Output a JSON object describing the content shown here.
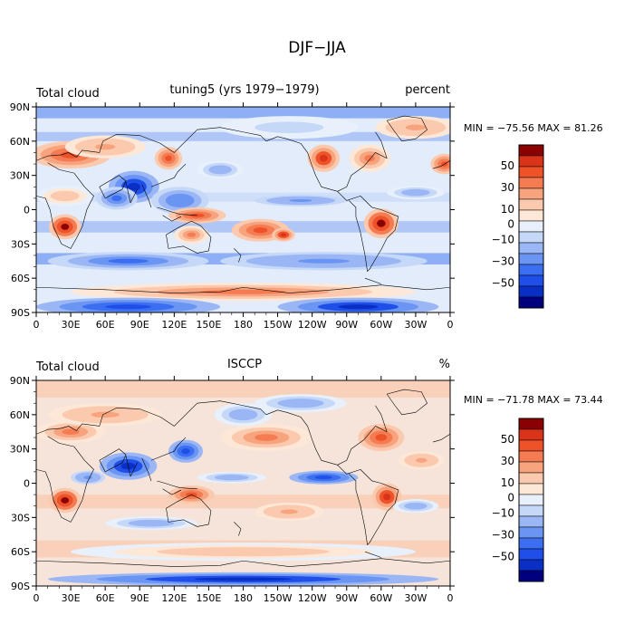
{
  "figure_title": "DJF−JJA",
  "colors": {
    "levels": [
      -60,
      -50,
      -40,
      -30,
      -20,
      -10,
      -5,
      5,
      10,
      20,
      30,
      40,
      50,
      60
    ],
    "palette": [
      "#00007f",
      "#0a2fc4",
      "#1f4fe8",
      "#3b6ef0",
      "#6a95f3",
      "#9ab6f5",
      "#c6d8f8",
      "#e8f0fc",
      "#fde8d8",
      "#fbc9ad",
      "#f7a37e",
      "#f47b52",
      "#ee5228",
      "#d9341a",
      "#8b0000"
    ],
    "coast": "#000000"
  },
  "chart_data": [
    {
      "type": "heatmap",
      "left_label": "Total cloud",
      "title": "tuning5 (yrs 1979−1979)",
      "units": "percent",
      "stats": "MIN = −75.56  MAX =  81.26",
      "min": -75.56,
      "max": 81.26,
      "x_ticks": [
        "0",
        "30E",
        "60E",
        "90E",
        "120E",
        "150E",
        "180",
        "150W",
        "120W",
        "90W",
        "60W",
        "30W",
        "0"
      ],
      "y_ticks": [
        "90N",
        "60N",
        "30N",
        "0",
        "30S",
        "60S",
        "90S"
      ],
      "legend_labels": [
        "50",
        "30",
        "10",
        "0",
        "−10",
        "−30",
        "−50"
      ],
      "features": [
        {
          "lon": 25,
          "lat": 12,
          "rlon": 25,
          "rlat": 9,
          "v": 15
        },
        {
          "lon": 30,
          "lat": 48,
          "rlon": 35,
          "rlat": 12,
          "v": 40
        },
        {
          "lon": 60,
          "lat": 55,
          "rlon": 35,
          "rlat": 10,
          "v": 25
        },
        {
          "lon": 85,
          "lat": 20,
          "rlon": 22,
          "rlat": 14,
          "v": -55
        },
        {
          "lon": 70,
          "lat": 10,
          "rlon": 18,
          "rlat": 10,
          "v": -40
        },
        {
          "lon": 25,
          "lat": -15,
          "rlon": 14,
          "rlat": 11,
          "v": 65
        },
        {
          "lon": 115,
          "lat": 45,
          "rlon": 12,
          "rlat": 10,
          "v": 40
        },
        {
          "lon": 125,
          "lat": 8,
          "rlon": 25,
          "rlat": 12,
          "v": -30
        },
        {
          "lon": 140,
          "lat": -5,
          "rlon": 25,
          "rlat": 7,
          "v": 40
        },
        {
          "lon": 135,
          "lat": -22,
          "rlon": 15,
          "rlat": 8,
          "v": 30
        },
        {
          "lon": 195,
          "lat": -18,
          "rlon": 25,
          "rlat": 10,
          "v": 45
        },
        {
          "lon": 215,
          "lat": -22,
          "rlon": 10,
          "rlat": 6,
          "v": 55
        },
        {
          "lon": 250,
          "lat": 45,
          "rlon": 14,
          "rlat": 12,
          "v": 55
        },
        {
          "lon": 290,
          "lat": 45,
          "rlon": 18,
          "rlat": 12,
          "v": 30
        },
        {
          "lon": 300,
          "lat": -12,
          "rlon": 15,
          "rlat": 13,
          "v": 65
        },
        {
          "lon": 355,
          "lat": 40,
          "rlon": 12,
          "rlat": 9,
          "v": 45
        },
        {
          "lon": 230,
          "lat": 8,
          "rlon": 40,
          "rlat": 5,
          "v": -25
        },
        {
          "lon": 80,
          "lat": -45,
          "rlon": 70,
          "rlat": 8,
          "v": -35
        },
        {
          "lon": 250,
          "lat": -45,
          "rlon": 90,
          "rlat": 8,
          "v": -25
        },
        {
          "lon": 180,
          "lat": -72,
          "rlon": 150,
          "rlat": 8,
          "v": 30
        },
        {
          "lon": 80,
          "lat": -85,
          "rlon": 80,
          "rlat": 8,
          "v": -50
        },
        {
          "lon": 280,
          "lat": -85,
          "rlon": 70,
          "rlat": 8,
          "v": -55
        },
        {
          "lon": 220,
          "lat": 72,
          "rlon": 60,
          "rlat": 10,
          "v": -10
        },
        {
          "lon": 330,
          "lat": 72,
          "rlon": 35,
          "rlat": 10,
          "v": 25
        },
        {
          "lon": 330,
          "lat": 15,
          "rlon": 25,
          "rlat": 6,
          "v": -20
        },
        {
          "lon": 160,
          "lat": 35,
          "rlon": 20,
          "rlat": 8,
          "v": -15
        }
      ]
    },
    {
      "type": "heatmap",
      "left_label": "Total cloud",
      "title": "ISCCP",
      "units": "%",
      "stats": "MIN = −71.78  MAX =  73.44",
      "min": -71.78,
      "max": 73.44,
      "x_ticks": [
        "0",
        "30E",
        "60E",
        "90E",
        "120E",
        "150E",
        "180",
        "150W",
        "120W",
        "90W",
        "60W",
        "30W",
        "0"
      ],
      "y_ticks": [
        "90N",
        "60N",
        "30N",
        "0",
        "30S",
        "60S",
        "90S"
      ],
      "legend_labels": [
        "50",
        "30",
        "10",
        "0",
        "−10",
        "−30",
        "−50"
      ],
      "features": [
        {
          "lon": 30,
          "lat": 45,
          "rlon": 30,
          "rlat": 10,
          "v": 30
        },
        {
          "lon": 80,
          "lat": 15,
          "rlon": 25,
          "rlat": 12,
          "v": -55
        },
        {
          "lon": 130,
          "lat": 28,
          "rlon": 15,
          "rlat": 10,
          "v": -45
        },
        {
          "lon": 25,
          "lat": -15,
          "rlon": 14,
          "rlat": 11,
          "v": 60
        },
        {
          "lon": 135,
          "lat": -10,
          "rlon": 20,
          "rlat": 8,
          "v": 40
        },
        {
          "lon": 200,
          "lat": 40,
          "rlon": 40,
          "rlat": 12,
          "v": 30
        },
        {
          "lon": 250,
          "lat": 5,
          "rlon": 30,
          "rlat": 6,
          "v": -50
        },
        {
          "lon": 300,
          "lat": 40,
          "rlon": 20,
          "rlat": 12,
          "v": 40
        },
        {
          "lon": 305,
          "lat": -12,
          "rlon": 13,
          "rlat": 12,
          "v": 55
        },
        {
          "lon": 335,
          "lat": 20,
          "rlon": 20,
          "rlat": 8,
          "v": 25
        },
        {
          "lon": 100,
          "lat": -35,
          "rlon": 40,
          "rlat": 6,
          "v": -20
        },
        {
          "lon": 180,
          "lat": -60,
          "rlon": 150,
          "rlat": 8,
          "v": 15
        },
        {
          "lon": 180,
          "lat": -84,
          "rlon": 170,
          "rlat": 6,
          "v": -55
        },
        {
          "lon": 60,
          "lat": 60,
          "rlon": 50,
          "rlat": 10,
          "v": 25
        },
        {
          "lon": 180,
          "lat": 60,
          "rlon": 25,
          "rlat": 10,
          "v": -20
        },
        {
          "lon": 330,
          "lat": -20,
          "rlon": 20,
          "rlat": 6,
          "v": -20
        },
        {
          "lon": 45,
          "lat": 5,
          "rlon": 15,
          "rlat": 6,
          "v": -25
        },
        {
          "lon": 170,
          "lat": 5,
          "rlon": 30,
          "rlat": 5,
          "v": -20
        },
        {
          "lon": 220,
          "lat": -25,
          "rlon": 30,
          "rlat": 8,
          "v": 20
        },
        {
          "lon": 230,
          "lat": 70,
          "rlon": 40,
          "rlat": 8,
          "v": -15
        }
      ]
    }
  ]
}
